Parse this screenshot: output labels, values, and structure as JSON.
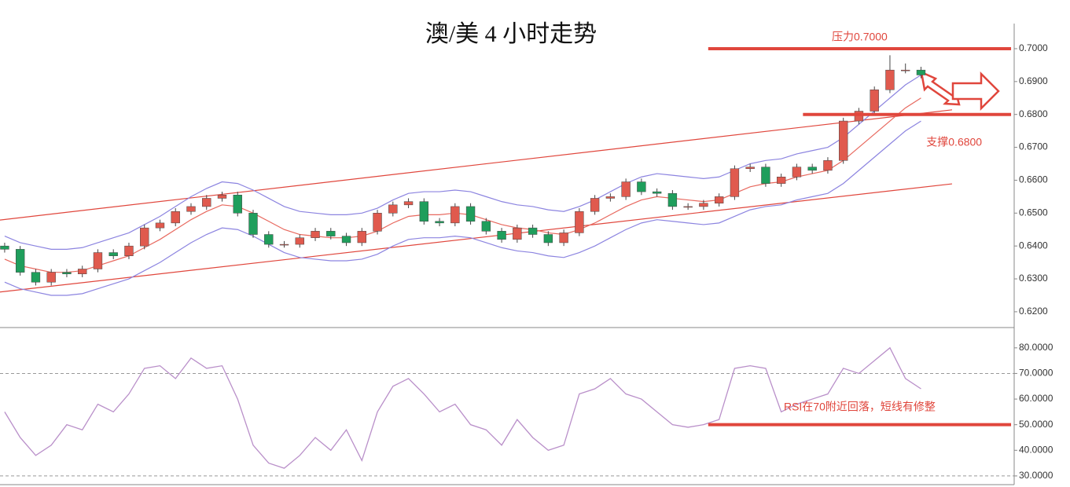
{
  "chart_data": [
    {
      "type": "candlestick",
      "title": "澳/美 4 小时走势",
      "open": [
        0.64,
        0.639,
        0.632,
        0.629,
        0.632,
        0.6315,
        0.633,
        0.638,
        0.637,
        0.64,
        0.6455,
        0.647,
        0.6505,
        0.652,
        0.6545,
        0.6555,
        0.65,
        0.6435,
        0.6405,
        0.6405,
        0.6425,
        0.6445,
        0.643,
        0.641,
        0.6445,
        0.65,
        0.6525,
        0.6535,
        0.6475,
        0.647,
        0.652,
        0.6475,
        0.6445,
        0.642,
        0.6455,
        0.6435,
        0.641,
        0.644,
        0.6505,
        0.6545,
        0.655,
        0.6595,
        0.6565,
        0.656,
        0.652,
        0.652,
        0.653,
        0.655,
        0.6635,
        0.664,
        0.659,
        0.661,
        0.664,
        0.663,
        0.666,
        0.678,
        0.681,
        0.6875,
        0.6935,
        0.6935
      ],
      "high": [
        0.641,
        0.64,
        0.633,
        0.633,
        0.633,
        0.634,
        0.639,
        0.639,
        0.641,
        0.6465,
        0.648,
        0.6515,
        0.653,
        0.6555,
        0.6565,
        0.6565,
        0.651,
        0.6445,
        0.6415,
        0.6435,
        0.6455,
        0.6455,
        0.644,
        0.6455,
        0.651,
        0.6535,
        0.6545,
        0.6545,
        0.6485,
        0.653,
        0.653,
        0.6485,
        0.6455,
        0.6465,
        0.6465,
        0.6445,
        0.645,
        0.6515,
        0.6555,
        0.656,
        0.6605,
        0.6605,
        0.6575,
        0.657,
        0.653,
        0.654,
        0.656,
        0.6645,
        0.665,
        0.665,
        0.662,
        0.665,
        0.665,
        0.667,
        0.679,
        0.682,
        0.6885,
        0.698,
        0.6955,
        0.6945
      ],
      "low": [
        0.638,
        0.631,
        0.628,
        0.628,
        0.6305,
        0.6305,
        0.632,
        0.636,
        0.636,
        0.639,
        0.6445,
        0.646,
        0.6495,
        0.651,
        0.6535,
        0.649,
        0.6425,
        0.6395,
        0.6395,
        0.6395,
        0.6415,
        0.642,
        0.64,
        0.64,
        0.6435,
        0.649,
        0.6515,
        0.6465,
        0.646,
        0.646,
        0.6465,
        0.6435,
        0.641,
        0.641,
        0.6425,
        0.64,
        0.64,
        0.643,
        0.6495,
        0.6535,
        0.654,
        0.6555,
        0.655,
        0.651,
        0.651,
        0.651,
        0.652,
        0.654,
        0.6625,
        0.658,
        0.658,
        0.66,
        0.662,
        0.662,
        0.665,
        0.677,
        0.68,
        0.6865,
        0.6925,
        0.691
      ],
      "close": [
        0.639,
        0.632,
        0.629,
        0.632,
        0.6315,
        0.633,
        0.638,
        0.637,
        0.64,
        0.6455,
        0.647,
        0.6505,
        0.652,
        0.6545,
        0.6555,
        0.65,
        0.6435,
        0.6405,
        0.6405,
        0.6425,
        0.6445,
        0.643,
        0.641,
        0.6445,
        0.65,
        0.6525,
        0.6535,
        0.6475,
        0.647,
        0.652,
        0.6475,
        0.6445,
        0.642,
        0.6455,
        0.6435,
        0.641,
        0.644,
        0.6505,
        0.6545,
        0.655,
        0.6595,
        0.6565,
        0.656,
        0.652,
        0.652,
        0.653,
        0.655,
        0.6635,
        0.664,
        0.659,
        0.661,
        0.664,
        0.663,
        0.666,
        0.678,
        0.681,
        0.6875,
        0.6935,
        0.6935,
        0.692
      ],
      "up_color": "#e05a4e",
      "down_color": "#1f9e5c",
      "overlays": [
        {
          "color": "#8c84e0",
          "values": [
            0.643,
            0.641,
            0.64,
            0.639,
            0.639,
            0.6395,
            0.641,
            0.6425,
            0.644,
            0.6465,
            0.649,
            0.652,
            0.655,
            0.6575,
            0.6595,
            0.659,
            0.657,
            0.6545,
            0.652,
            0.6505,
            0.65,
            0.6495,
            0.6495,
            0.65,
            0.6515,
            0.654,
            0.656,
            0.6565,
            0.6565,
            0.657,
            0.6565,
            0.655,
            0.6535,
            0.6525,
            0.652,
            0.651,
            0.6505,
            0.652,
            0.654,
            0.6565,
            0.659,
            0.661,
            0.662,
            0.6615,
            0.661,
            0.6605,
            0.661,
            0.663,
            0.665,
            0.666,
            0.6665,
            0.668,
            0.669,
            0.67,
            0.673,
            0.677,
            0.681,
            0.685,
            0.689,
            0.692
          ]
        },
        {
          "color": "#e8695f",
          "values": [
            0.636,
            0.634,
            0.633,
            0.632,
            0.632,
            0.6325,
            0.634,
            0.6355,
            0.637,
            0.6395,
            0.642,
            0.645,
            0.648,
            0.6505,
            0.6525,
            0.652,
            0.65,
            0.6475,
            0.645,
            0.6435,
            0.643,
            0.6425,
            0.6425,
            0.643,
            0.6445,
            0.647,
            0.649,
            0.6495,
            0.6495,
            0.65,
            0.6495,
            0.648,
            0.6465,
            0.6455,
            0.645,
            0.644,
            0.6435,
            0.645,
            0.647,
            0.6495,
            0.652,
            0.654,
            0.655,
            0.6545,
            0.654,
            0.6535,
            0.654,
            0.656,
            0.658,
            0.659,
            0.6595,
            0.661,
            0.662,
            0.663,
            0.666,
            0.67,
            0.674,
            0.678,
            0.682,
            0.685
          ]
        },
        {
          "color": "#8c84e0",
          "values": [
            0.629,
            0.627,
            0.626,
            0.625,
            0.625,
            0.6255,
            0.627,
            0.6285,
            0.63,
            0.6325,
            0.635,
            0.638,
            0.641,
            0.6435,
            0.6455,
            0.645,
            0.643,
            0.6405,
            0.638,
            0.6365,
            0.636,
            0.6355,
            0.6355,
            0.636,
            0.6375,
            0.64,
            0.642,
            0.6425,
            0.6425,
            0.643,
            0.6425,
            0.641,
            0.6395,
            0.6385,
            0.638,
            0.637,
            0.6365,
            0.638,
            0.64,
            0.6425,
            0.645,
            0.647,
            0.648,
            0.6475,
            0.647,
            0.6465,
            0.647,
            0.649,
            0.651,
            0.652,
            0.6525,
            0.654,
            0.655,
            0.656,
            0.659,
            0.663,
            0.667,
            0.671,
            0.675,
            0.678
          ]
        }
      ],
      "lines": [
        {
          "color": "#e0463c",
          "x": [
            -0.3,
            61
          ],
          "y": [
            0.6479,
            0.6814
          ]
        },
        {
          "color": "#e0463c",
          "x": [
            -0.3,
            61
          ],
          "y": [
            0.626,
            0.6589
          ]
        }
      ],
      "levels": [
        {
          "value": 0.7,
          "from": 45.3,
          "to": 64.8,
          "label": "压力0.7000",
          "color": "#e0463c"
        },
        {
          "value": 0.68,
          "from": 51.4,
          "to": 64.8,
          "label": "支撑0.6800",
          "color": "#e0463c"
        }
      ],
      "xlim": [
        -0.3,
        65
      ],
      "ylim": [
        0.6152,
        0.7148
      ],
      "yticks": [
        {
          "value": 0.62,
          "label": "0.6200"
        },
        {
          "value": 0.63,
          "label": "0.6300"
        },
        {
          "value": 0.64,
          "label": "0.6400"
        },
        {
          "value": 0.65,
          "label": "0.6500"
        },
        {
          "value": 0.66,
          "label": "0.6600"
        },
        {
          "value": 0.67,
          "label": "0.6700"
        },
        {
          "value": 0.68,
          "label": "0.6800"
        },
        {
          "value": 0.69,
          "label": "0.6900"
        },
        {
          "value": 0.7,
          "label": "0.7000"
        }
      ]
    },
    {
      "type": "line",
      "color": "#b98fc9",
      "values": [
        55,
        45,
        38,
        42,
        50,
        48,
        58,
        55,
        62,
        72,
        73,
        68,
        76,
        72,
        73,
        60,
        42,
        35,
        33,
        38,
        45,
        40,
        48,
        36,
        55,
        65,
        68,
        62,
        55,
        58,
        50,
        48,
        42,
        52,
        45,
        40,
        42,
        62,
        64,
        68,
        62,
        60,
        55,
        50,
        49,
        50,
        52,
        72,
        73,
        72,
        55,
        58,
        60,
        62,
        72,
        70,
        75,
        80,
        68,
        64
      ],
      "dashed": [
        70,
        30
      ],
      "levels": [
        {
          "value": 50,
          "from": 45.3,
          "to": 64.8,
          "label": "RSI在70附近回落，短线有修整",
          "color": "#e0463c"
        }
      ],
      "xlim": [
        -0.3,
        65
      ],
      "ylim": [
        26.6,
        87
      ],
      "yticks": [
        {
          "value": 30,
          "label": "30.0000"
        },
        {
          "value": 40,
          "label": "40.0000"
        },
        {
          "value": 50,
          "label": "50.0000"
        },
        {
          "value": 60,
          "label": "60.0000"
        },
        {
          "value": 70,
          "label": "70.0000"
        },
        {
          "value": 80,
          "label": "80.0000"
        }
      ]
    }
  ]
}
